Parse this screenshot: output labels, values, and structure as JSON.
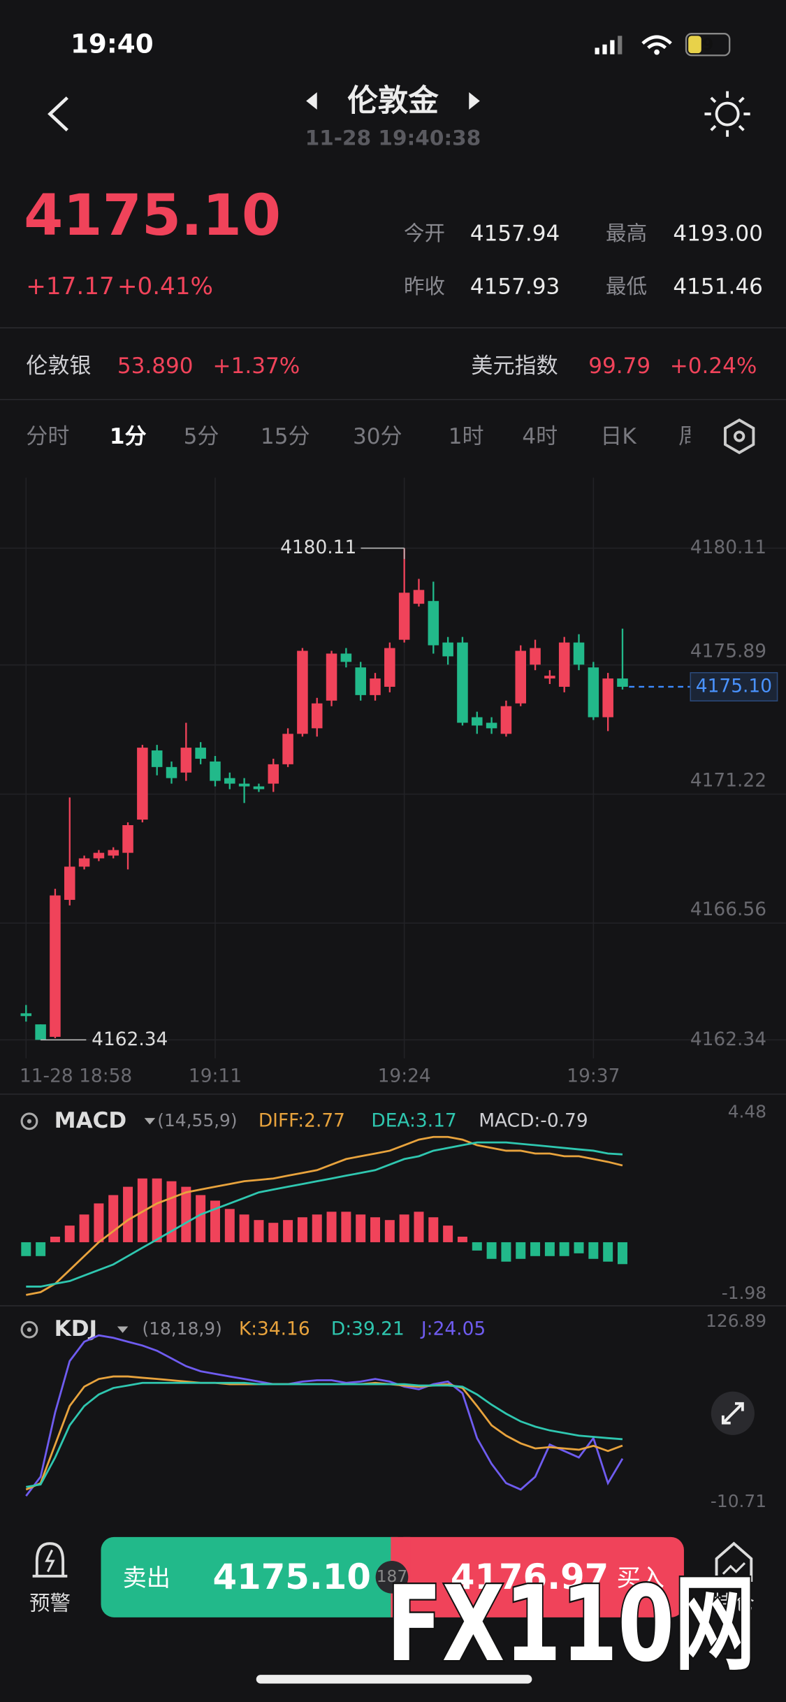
{
  "status_bar": {
    "time": "19:40",
    "battery": "9"
  },
  "header": {
    "title": "伦敦金",
    "timestamp": "11-28 19:40:38"
  },
  "quote": {
    "price": "4175.10",
    "change": "+17.17",
    "change_pct": "+0.41%",
    "stats": [
      {
        "label": "今开",
        "value": "4157.94"
      },
      {
        "label": "最高",
        "value": "4193.00"
      },
      {
        "label": "昨收",
        "value": "4157.93"
      },
      {
        "label": "最低",
        "value": "4151.46"
      }
    ]
  },
  "tickers": [
    {
      "name": "伦敦银",
      "price": "53.890",
      "change": "+1.37%"
    },
    {
      "name": "美元指数",
      "price": "99.79",
      "change": "+0.24%"
    }
  ],
  "tabs": [
    "分时",
    "1分",
    "5分",
    "15分",
    "30分",
    "1时",
    "4时",
    "日K",
    "周"
  ],
  "chart": {
    "type": "candlestick",
    "ylim": [
      4162.34,
      4180.11
    ],
    "yticks": [
      4162.34,
      4166.56,
      4171.22,
      4175.89,
      4180.11
    ],
    "high_label": "4180.11",
    "low_label": "4162.34",
    "categories": [
      "11-28 18:58",
      null,
      null,
      null,
      null,
      null,
      null,
      null,
      null,
      null,
      null,
      null,
      null,
      "19:11",
      null,
      null,
      null,
      null,
      null,
      null,
      null,
      null,
      null,
      null,
      null,
      null,
      "19:24",
      null,
      null,
      null,
      null,
      null,
      null,
      null,
      null,
      null,
      null,
      null,
      null,
      "19:37",
      null,
      null
    ],
    "up_color": "#f0435a",
    "down_color": "#22b98a",
    "candles": [
      [
        4163.3,
        4163.6,
        4163.0,
        4163.2
      ],
      [
        4162.9,
        4162.9,
        4162.34,
        4162.34
      ],
      [
        4162.45,
        4167.8,
        4162.4,
        4167.56
      ],
      [
        4167.4,
        4171.1,
        4167.2,
        4168.6
      ],
      [
        4168.6,
        4169.0,
        4168.5,
        4168.9
      ],
      [
        4168.9,
        4169.2,
        4168.8,
        4169.1
      ],
      [
        4169.0,
        4169.3,
        4168.9,
        4169.2
      ],
      [
        4169.1,
        4170.2,
        4168.5,
        4170.1
      ],
      [
        4170.3,
        4173.0,
        4170.2,
        4172.9
      ],
      [
        4172.8,
        4173.0,
        4171.9,
        4172.2
      ],
      [
        4172.2,
        4172.4,
        4171.6,
        4171.8
      ],
      [
        4172.0,
        4173.8,
        4171.7,
        4172.9
      ],
      [
        4172.9,
        4173.1,
        4172.3,
        4172.5
      ],
      [
        4172.4,
        4172.6,
        4171.5,
        4171.7
      ],
      [
        4171.8,
        4172.0,
        4171.4,
        4171.6
      ],
      [
        4171.6,
        4171.8,
        4170.9,
        4171.5
      ],
      [
        4171.5,
        4171.6,
        4171.3,
        4171.4
      ],
      [
        4171.6,
        4172.5,
        4171.3,
        4172.3
      ],
      [
        4172.3,
        4173.6,
        4172.2,
        4173.4
      ],
      [
        4173.4,
        4176.5,
        4173.3,
        4176.4
      ],
      [
        4173.6,
        4174.7,
        4173.3,
        4174.5
      ],
      [
        4174.6,
        4176.4,
        4174.4,
        4176.3
      ],
      [
        4176.3,
        4176.5,
        4175.8,
        4176.0
      ],
      [
        4175.8,
        4176.0,
        4174.6,
        4174.8
      ],
      [
        4174.8,
        4175.6,
        4174.6,
        4175.4
      ],
      [
        4175.1,
        4176.7,
        4174.9,
        4176.5
      ],
      [
        4176.8,
        4180.11,
        4176.7,
        4178.5
      ],
      [
        4178.1,
        4179.0,
        4178.0,
        4178.6
      ],
      [
        4178.2,
        4178.9,
        4176.3,
        4176.6
      ],
      [
        4176.7,
        4176.9,
        4175.9,
        4176.2
      ],
      [
        4176.7,
        4176.9,
        4173.7,
        4173.8
      ],
      [
        4174.0,
        4174.2,
        4173.4,
        4173.7
      ],
      [
        4173.8,
        4174.0,
        4173.4,
        4173.6
      ],
      [
        4173.4,
        4174.6,
        4173.3,
        4174.4
      ],
      [
        4174.5,
        4176.6,
        4174.4,
        4176.4
      ],
      [
        4175.9,
        4176.8,
        4175.7,
        4176.5
      ],
      [
        4175.4,
        4175.7,
        4175.2,
        4175.5
      ],
      [
        4175.1,
        4176.9,
        4174.9,
        4176.7
      ],
      [
        4176.7,
        4177.0,
        4175.7,
        4175.9
      ],
      [
        4175.8,
        4176.0,
        4173.9,
        4174.0
      ],
      [
        4174.0,
        4175.6,
        4173.5,
        4175.4
      ],
      [
        4175.4,
        4177.2,
        4175.0,
        4175.1
      ]
    ]
  },
  "macd": {
    "title": "MACD",
    "params": "(14,55,9)",
    "diff_label": "DIFF:2.77",
    "dea_label": "DEA:3.17",
    "macd_label": "MACD:-0.79",
    "ylim": [
      -1.98,
      4.48
    ],
    "histogram": [
      -0.5,
      -0.5,
      0.2,
      0.6,
      1.0,
      1.4,
      1.7,
      2.0,
      2.3,
      2.3,
      2.2,
      2.0,
      1.7,
      1.5,
      1.2,
      1.0,
      0.8,
      0.7,
      0.8,
      0.9,
      1.0,
      1.1,
      1.1,
      1.0,
      0.9,
      0.8,
      1.0,
      1.1,
      0.9,
      0.6,
      0.2,
      -0.3,
      -0.6,
      -0.7,
      -0.6,
      -0.5,
      -0.5,
      -0.5,
      -0.4,
      -0.6,
      -0.7,
      -0.79
    ],
    "diff": [
      -1.9,
      -1.8,
      -1.5,
      -1.0,
      -0.5,
      0,
      0.4,
      0.8,
      1.1,
      1.4,
      1.6,
      1.8,
      1.9,
      2.0,
      2.1,
      2.2,
      2.25,
      2.3,
      2.4,
      2.5,
      2.6,
      2.8,
      3.0,
      3.1,
      3.2,
      3.3,
      3.5,
      3.7,
      3.8,
      3.8,
      3.7,
      3.5,
      3.4,
      3.3,
      3.3,
      3.2,
      3.2,
      3.1,
      3.1,
      3.0,
      2.9,
      2.77
    ],
    "dea": [
      -1.6,
      -1.6,
      -1.5,
      -1.4,
      -1.2,
      -1.0,
      -0.8,
      -0.5,
      -0.2,
      0.1,
      0.4,
      0.7,
      1.0,
      1.2,
      1.4,
      1.6,
      1.8,
      1.9,
      2.0,
      2.1,
      2.2,
      2.3,
      2.4,
      2.5,
      2.6,
      2.8,
      3.0,
      3.1,
      3.3,
      3.4,
      3.5,
      3.6,
      3.6,
      3.6,
      3.55,
      3.5,
      3.45,
      3.4,
      3.35,
      3.3,
      3.2,
      3.17
    ],
    "diff_color": "#e8a33d",
    "dea_color": "#2fc7b0"
  },
  "kdj": {
    "title": "KDJ",
    "params": "(18,18,9)",
    "k_label": "K:34.16",
    "d_label": "D:39.21",
    "j_label": "J:24.05",
    "ylim": [
      -10.71,
      126.89
    ],
    "k": [
      0,
      5,
      35,
      65,
      80,
      86,
      88,
      88,
      87,
      86,
      85,
      84,
      83,
      83,
      82,
      82,
      82,
      82,
      82,
      82,
      82,
      82,
      82,
      82,
      83,
      82,
      81,
      80,
      81,
      82,
      79,
      65,
      50,
      42,
      36,
      32,
      33,
      32,
      31,
      34,
      30,
      34.16
    ],
    "d": [
      2,
      4,
      25,
      50,
      65,
      74,
      79,
      81,
      83,
      83,
      83,
      83,
      83,
      83,
      83,
      83,
      82,
      82,
      82,
      82,
      82,
      82,
      82,
      82,
      82,
      82,
      82,
      81,
      81,
      81,
      80,
      74,
      66,
      59,
      53,
      49,
      46,
      44,
      42,
      41,
      40,
      39.21
    ],
    "j": [
      -5,
      10,
      60,
      100,
      115,
      120,
      118,
      115,
      112,
      108,
      102,
      96,
      92,
      90,
      88,
      86,
      84,
      82,
      82,
      84,
      85,
      85,
      83,
      84,
      86,
      84,
      80,
      78,
      82,
      84,
      75,
      40,
      20,
      5,
      0,
      10,
      35,
      30,
      25,
      40,
      5,
      24.05
    ],
    "k_color": "#e8a33d",
    "d_color": "#2fc7b0",
    "j_color": "#6f5cf0"
  },
  "trade_bar": {
    "alert": "预警",
    "sell": "卖出",
    "sell_price": "4175.10",
    "spread": "187",
    "buy_price": "4176.97",
    "buy": "买入",
    "position": "持仓"
  },
  "watermark": "FX110网"
}
